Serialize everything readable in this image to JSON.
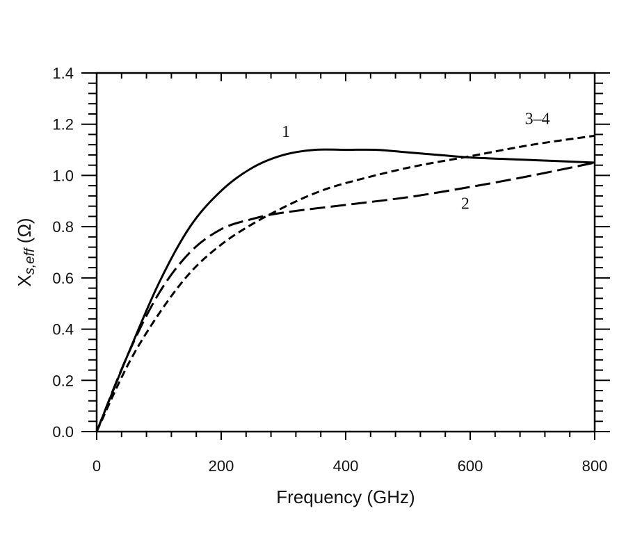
{
  "chart_data": {
    "type": "line",
    "title": "",
    "xlabel": "Frequency (GHz)",
    "ylabel": {
      "main": "X",
      "sub": "s,eff",
      "unit": " (Ω)"
    },
    "xlim": [
      0,
      800
    ],
    "ylim": [
      0,
      1.4
    ],
    "xticks": [
      0,
      200,
      400,
      600,
      800
    ],
    "xtick_labels": [
      "0",
      "200",
      "400",
      "600",
      "800"
    ],
    "yticks": [
      0,
      0.2,
      0.4,
      0.6,
      0.8,
      1.0,
      1.2,
      1.4
    ],
    "ytick_labels": [
      "0.0",
      "0.2",
      "0.4",
      "0.6",
      "0.8",
      "1.0",
      "1.2",
      "1.4"
    ],
    "x_minor_step": 40,
    "y_minor_step": 0.04,
    "grid": false,
    "series": [
      {
        "name": "1",
        "style": "solid",
        "x": [
          0,
          50,
          100,
          150,
          200,
          250,
          300,
          350,
          400,
          450,
          500,
          550,
          600,
          700,
          800
        ],
        "y": [
          0,
          0.3,
          0.58,
          0.8,
          0.94,
          1.03,
          1.08,
          1.1,
          1.1,
          1.1,
          1.09,
          1.08,
          1.07,
          1.06,
          1.05
        ],
        "label_at": [
          304,
          1.15
        ]
      },
      {
        "name": "2",
        "style": "long-dash",
        "x": [
          0,
          50,
          100,
          150,
          200,
          250,
          300,
          400,
          500,
          600,
          700,
          800
        ],
        "y": [
          0,
          0.3,
          0.54,
          0.7,
          0.79,
          0.83,
          0.855,
          0.885,
          0.915,
          0.955,
          1.0,
          1.05
        ],
        "label_at": [
          592,
          0.87
        ]
      },
      {
        "name": "3–4",
        "style": "short-dash",
        "x": [
          0,
          50,
          100,
          150,
          200,
          250,
          300,
          350,
          400,
          500,
          600,
          700,
          800
        ],
        "y": [
          0,
          0.26,
          0.46,
          0.62,
          0.73,
          0.81,
          0.875,
          0.93,
          0.97,
          1.03,
          1.075,
          1.12,
          1.155
        ],
        "label_at": [
          708,
          1.2
        ]
      }
    ]
  }
}
